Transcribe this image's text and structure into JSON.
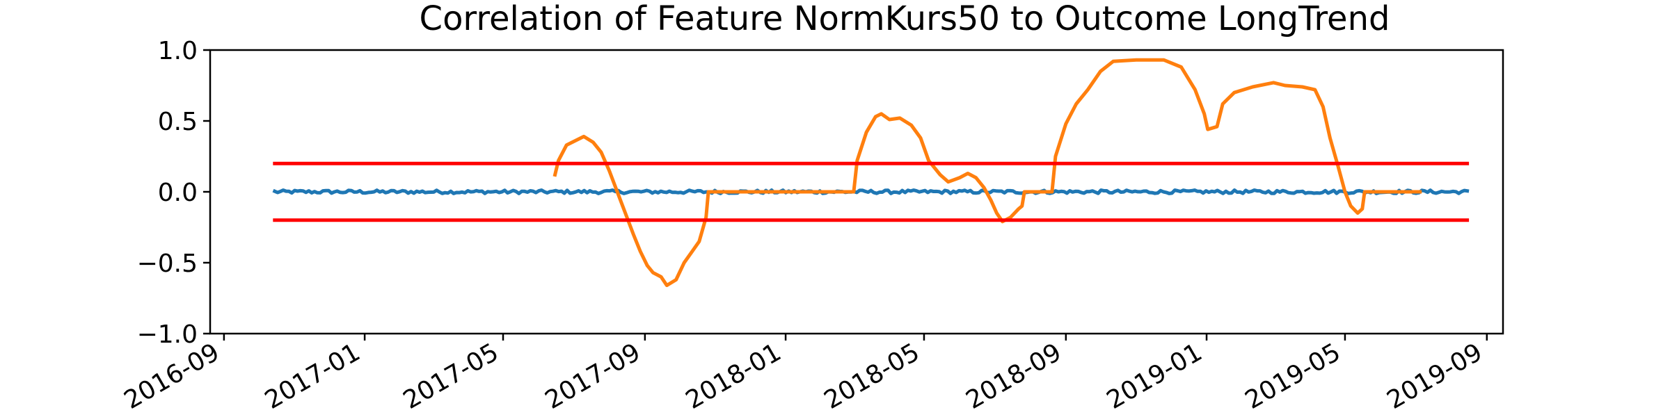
{
  "chart_data": {
    "type": "line",
    "title": "Correlation of Feature NormKurs50 to Outcome LongTrend",
    "xlabel": "",
    "ylabel": "",
    "ylim": [
      -1.0,
      1.0
    ],
    "x_axis_type": "date",
    "xlim": [
      "2016-08-20",
      "2019-09-15"
    ],
    "x_ticks": [
      "2016-09",
      "2017-01",
      "2017-05",
      "2017-09",
      "2018-01",
      "2018-05",
      "2018-09",
      "2019-01",
      "2019-05",
      "2019-09"
    ],
    "x_tick_dates": [
      "2016-09-01",
      "2017-01-01",
      "2017-05-01",
      "2017-09-01",
      "2018-01-01",
      "2018-05-01",
      "2018-09-01",
      "2019-01-01",
      "2019-05-01",
      "2019-09-01"
    ],
    "y_ticks": [
      "1.0",
      "0.5",
      "0.0",
      "−0.5",
      "−1.0"
    ],
    "y_tick_values": [
      1.0,
      0.5,
      0.0,
      -0.5,
      -1.0
    ],
    "grid": false,
    "series": [
      {
        "name": "baseline",
        "color": "#1f77b4",
        "start": "2016-10-15",
        "end": "2019-08-15",
        "mean": 0.0,
        "noise": 0.012
      },
      {
        "name": "correlation",
        "color": "#ff7f0e",
        "points": [
          [
            "2017-06-15",
            0.12
          ],
          [
            "2017-06-18",
            0.22
          ],
          [
            "2017-06-25",
            0.33
          ],
          [
            "2017-07-05",
            0.37
          ],
          [
            "2017-07-10",
            0.39
          ],
          [
            "2017-07-18",
            0.35
          ],
          [
            "2017-07-25",
            0.28
          ],
          [
            "2017-08-01",
            0.15
          ],
          [
            "2017-08-08",
            0.0
          ],
          [
            "2017-08-15",
            -0.15
          ],
          [
            "2017-08-22",
            -0.3
          ],
          [
            "2017-08-28",
            -0.42
          ],
          [
            "2017-09-03",
            -0.52
          ],
          [
            "2017-09-08",
            -0.57
          ],
          [
            "2017-09-15",
            -0.6
          ],
          [
            "2017-09-20",
            -0.66
          ],
          [
            "2017-09-28",
            -0.62
          ],
          [
            "2017-10-05",
            -0.5
          ],
          [
            "2017-10-12",
            -0.42
          ],
          [
            "2017-10-18",
            -0.35
          ],
          [
            "2017-10-24",
            -0.18
          ],
          [
            "2017-10-26",
            0.0
          ],
          [
            "2017-11-10",
            0.0
          ],
          [
            "2017-12-01",
            0.0
          ],
          [
            "2018-01-01",
            0.0
          ],
          [
            "2018-02-01",
            0.0
          ],
          [
            "2018-03-01",
            0.0
          ],
          [
            "2018-03-04",
            0.22
          ],
          [
            "2018-03-12",
            0.42
          ],
          [
            "2018-03-20",
            0.53
          ],
          [
            "2018-03-25",
            0.55
          ],
          [
            "2018-04-01",
            0.51
          ],
          [
            "2018-04-10",
            0.52
          ],
          [
            "2018-04-20",
            0.47
          ],
          [
            "2018-04-28",
            0.38
          ],
          [
            "2018-05-05",
            0.22
          ],
          [
            "2018-05-15",
            0.12
          ],
          [
            "2018-05-22",
            0.07
          ],
          [
            "2018-06-01",
            0.1
          ],
          [
            "2018-06-08",
            0.13
          ],
          [
            "2018-06-15",
            0.1
          ],
          [
            "2018-06-22",
            0.03
          ],
          [
            "2018-06-28",
            -0.06
          ],
          [
            "2018-07-03",
            -0.15
          ],
          [
            "2018-07-08",
            -0.21
          ],
          [
            "2018-07-15",
            -0.18
          ],
          [
            "2018-07-22",
            -0.12
          ],
          [
            "2018-07-25",
            -0.1
          ],
          [
            "2018-07-27",
            0.0
          ],
          [
            "2018-08-20",
            0.0
          ],
          [
            "2018-08-23",
            0.25
          ],
          [
            "2018-09-01",
            0.48
          ],
          [
            "2018-09-10",
            0.62
          ],
          [
            "2018-09-20",
            0.72
          ],
          [
            "2018-10-01",
            0.85
          ],
          [
            "2018-10-12",
            0.92
          ],
          [
            "2018-11-01",
            0.93
          ],
          [
            "2018-11-25",
            0.93
          ],
          [
            "2018-12-10",
            0.88
          ],
          [
            "2018-12-22",
            0.72
          ],
          [
            "2018-12-30",
            0.55
          ],
          [
            "2019-01-02",
            0.44
          ],
          [
            "2019-01-10",
            0.46
          ],
          [
            "2019-01-15",
            0.62
          ],
          [
            "2019-01-25",
            0.7
          ],
          [
            "2019-02-10",
            0.74
          ],
          [
            "2019-02-28",
            0.77
          ],
          [
            "2019-03-10",
            0.75
          ],
          [
            "2019-03-25",
            0.74
          ],
          [
            "2019-04-05",
            0.72
          ],
          [
            "2019-04-12",
            0.6
          ],
          [
            "2019-04-18",
            0.38
          ],
          [
            "2019-04-25",
            0.18
          ],
          [
            "2019-05-01",
            0.0
          ],
          [
            "2019-05-06",
            -0.1
          ],
          [
            "2019-05-12",
            -0.15
          ],
          [
            "2019-05-16",
            -0.12
          ],
          [
            "2019-05-18",
            0.0
          ],
          [
            "2019-06-15",
            0.0
          ],
          [
            "2019-07-05",
            0.0
          ]
        ]
      },
      {
        "name": "upper-threshold",
        "color": "#ff0000",
        "start": "2016-10-15",
        "end": "2019-08-15",
        "value": 0.2
      },
      {
        "name": "lower-threshold",
        "color": "#ff0000",
        "start": "2016-10-15",
        "end": "2019-08-15",
        "value": -0.2
      }
    ]
  }
}
